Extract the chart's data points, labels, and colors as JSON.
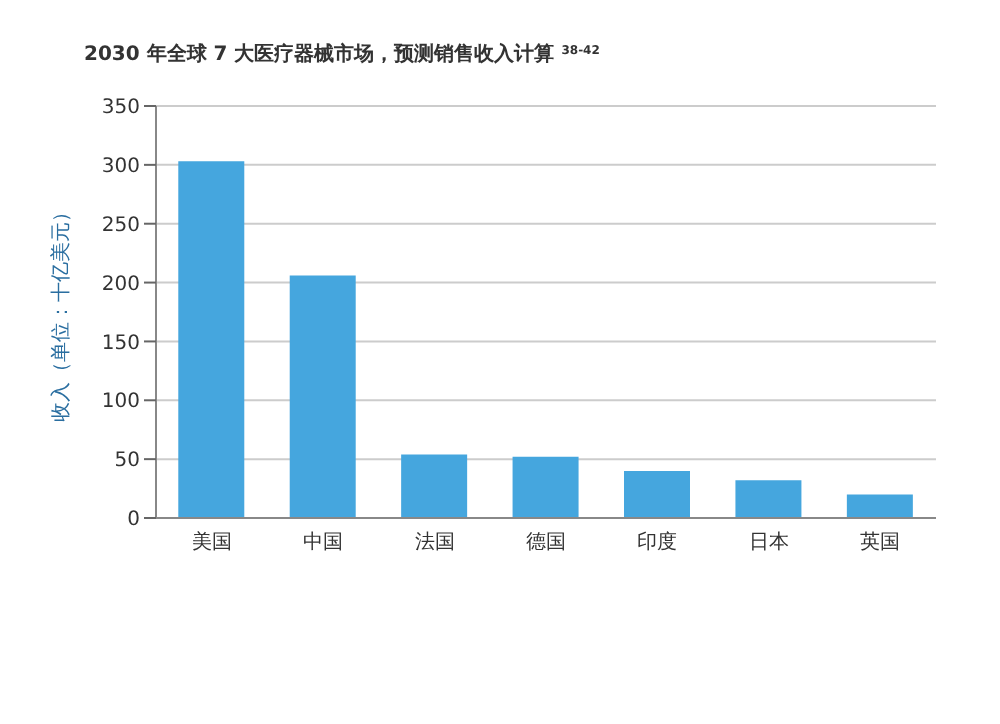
{
  "chart_data": {
    "type": "bar",
    "title": "2030 年全球 7 大医疗器械市场，预测销售收入计算 $^{38-42}$",
    "ylabel": "收入（单位：十亿美元）",
    "categories": [
      "美国",
      "中国",
      "法国",
      "德国",
      "印度",
      "日本",
      "英国"
    ],
    "values": [
      303,
      206,
      54,
      52,
      40,
      32,
      20
    ],
    "color": "#45a6de",
    "ylim": [
      0,
      350
    ],
    "yticks": [
      0,
      50,
      100,
      150,
      200,
      250,
      300,
      350
    ],
    "grid": "y"
  }
}
